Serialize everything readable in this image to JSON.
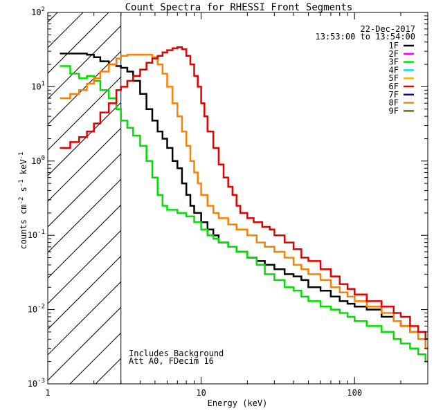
{
  "chart_data": {
    "type": "line",
    "title": "Count Spectra for RHESSI Front Segments",
    "xlabel": "Energy (keV)",
    "ylabel_base": "counts cm",
    "ylabel_exp1": "-2",
    "ylabel_mid": " s",
    "ylabel_exp2": "-1",
    "ylabel_end": " keV",
    "ylabel_exp3": "-1",
    "x_scale": "log",
    "y_scale": "log",
    "xlim": [
      1,
      300
    ],
    "ylim": [
      0.001,
      100
    ],
    "x_ticks": [
      {
        "value": 1,
        "label": "1"
      },
      {
        "value": 10,
        "label": "10"
      },
      {
        "value": 100,
        "label": "100"
      }
    ],
    "y_ticks": [
      {
        "value": 0.001,
        "base": "10",
        "exp": "-3"
      },
      {
        "value": 0.01,
        "base": "10",
        "exp": "-2"
      },
      {
        "value": 0.1,
        "base": "10",
        "exp": "-1"
      },
      {
        "value": 1,
        "base": "10",
        "exp": "0"
      },
      {
        "value": 10,
        "base": "10",
        "exp": "1"
      },
      {
        "value": 100,
        "base": "10",
        "exp": "2"
      }
    ],
    "hatched_region_max_energy": 3,
    "date_label": "22-Dec-2017",
    "time_label": "13:53:00 to 13:54:00",
    "legend": [
      {
        "name": "1F",
        "color": "#000000"
      },
      {
        "name": "2F",
        "color": "#ff00ff"
      },
      {
        "name": "3F",
        "color": "#00e000"
      },
      {
        "name": "4F",
        "color": "#00d8ff"
      },
      {
        "name": "5F",
        "color": "#ffb000"
      },
      {
        "name": "6F",
        "color": "#e00000"
      },
      {
        "name": "7F",
        "color": "#0000c0"
      },
      {
        "name": "8F",
        "color": "#ff8000"
      },
      {
        "name": "9F",
        "color": "#806000"
      }
    ],
    "annotations": [
      "Includes Background",
      "Att A0, FDecim 16"
    ],
    "series": [
      {
        "name": "1F",
        "color": "#000000",
        "points": [
          [
            1.2,
            28
          ],
          [
            1.5,
            28
          ],
          [
            1.8,
            27
          ],
          [
            2.0,
            25
          ],
          [
            2.2,
            22
          ],
          [
            2.5,
            20
          ],
          [
            2.8,
            19
          ],
          [
            3.0,
            18
          ],
          [
            3.3,
            16
          ],
          [
            3.6,
            12
          ],
          [
            4.0,
            8
          ],
          [
            4.4,
            5
          ],
          [
            4.8,
            3.5
          ],
          [
            5.2,
            2.5
          ],
          [
            5.6,
            2.0
          ],
          [
            6.0,
            1.5
          ],
          [
            6.5,
            1.0
          ],
          [
            7.0,
            0.8
          ],
          [
            7.5,
            0.5
          ],
          [
            8.0,
            0.35
          ],
          [
            8.5,
            0.25
          ],
          [
            9.0,
            0.2
          ],
          [
            10,
            0.15
          ],
          [
            11,
            0.12
          ],
          [
            12,
            0.1
          ],
          [
            13,
            0.08
          ],
          [
            15,
            0.07
          ],
          [
            17,
            0.06
          ],
          [
            20,
            0.05
          ],
          [
            23,
            0.045
          ],
          [
            26,
            0.04
          ],
          [
            30,
            0.035
          ],
          [
            35,
            0.03
          ],
          [
            40,
            0.028
          ],
          [
            45,
            0.025
          ],
          [
            50,
            0.02
          ],
          [
            60,
            0.018
          ],
          [
            70,
            0.015
          ],
          [
            80,
            0.013
          ],
          [
            90,
            0.012
          ],
          [
            100,
            0.011
          ],
          [
            120,
            0.01
          ],
          [
            150,
            0.008
          ],
          [
            180,
            0.007
          ],
          [
            200,
            0.006
          ],
          [
            230,
            0.005
          ],
          [
            260,
            0.004
          ],
          [
            290,
            0.003
          ]
        ]
      },
      {
        "name": "3F",
        "color": "#00e000",
        "points": [
          [
            1.2,
            19
          ],
          [
            1.4,
            15
          ],
          [
            1.6,
            13
          ],
          [
            1.8,
            14
          ],
          [
            2.0,
            12
          ],
          [
            2.2,
            9
          ],
          [
            2.5,
            7
          ],
          [
            2.8,
            5
          ],
          [
            3.0,
            3.5
          ],
          [
            3.3,
            2.8
          ],
          [
            3.6,
            2.2
          ],
          [
            4.0,
            1.6
          ],
          [
            4.4,
            1.0
          ],
          [
            4.8,
            0.6
          ],
          [
            5.2,
            0.35
          ],
          [
            5.6,
            0.25
          ],
          [
            6.0,
            0.22
          ],
          [
            7.0,
            0.2
          ],
          [
            8.0,
            0.18
          ],
          [
            9.0,
            0.15
          ],
          [
            10,
            0.12
          ],
          [
            11,
            0.1
          ],
          [
            12,
            0.09
          ],
          [
            13,
            0.08
          ],
          [
            15,
            0.07
          ],
          [
            17,
            0.06
          ],
          [
            20,
            0.05
          ],
          [
            23,
            0.04
          ],
          [
            26,
            0.03
          ],
          [
            30,
            0.025
          ],
          [
            35,
            0.02
          ],
          [
            40,
            0.018
          ],
          [
            45,
            0.015
          ],
          [
            50,
            0.013
          ],
          [
            60,
            0.011
          ],
          [
            70,
            0.01
          ],
          [
            80,
            0.009
          ],
          [
            90,
            0.008
          ],
          [
            100,
            0.007
          ],
          [
            120,
            0.006
          ],
          [
            150,
            0.005
          ],
          [
            180,
            0.004
          ],
          [
            200,
            0.0035
          ],
          [
            230,
            0.003
          ],
          [
            260,
            0.0025
          ],
          [
            290,
            0.002
          ]
        ]
      },
      {
        "name": "8F",
        "color": "#ff8000",
        "points": [
          [
            1.2,
            7
          ],
          [
            1.4,
            8
          ],
          [
            1.6,
            9
          ],
          [
            1.8,
            11
          ],
          [
            2.0,
            13
          ],
          [
            2.2,
            16
          ],
          [
            2.5,
            20
          ],
          [
            2.8,
            24
          ],
          [
            3.0,
            26
          ],
          [
            3.3,
            27
          ],
          [
            3.6,
            27
          ],
          [
            4.0,
            27
          ],
          [
            4.4,
            27
          ],
          [
            4.8,
            25
          ],
          [
            5.2,
            20
          ],
          [
            5.6,
            15
          ],
          [
            6.0,
            10
          ],
          [
            6.5,
            6
          ],
          [
            7.0,
            4
          ],
          [
            7.5,
            2.5
          ],
          [
            8.0,
            1.6
          ],
          [
            8.5,
            1.0
          ],
          [
            9.0,
            0.7
          ],
          [
            9.5,
            0.5
          ],
          [
            10,
            0.35
          ],
          [
            11,
            0.25
          ],
          [
            12,
            0.2
          ],
          [
            13,
            0.17
          ],
          [
            15,
            0.14
          ],
          [
            17,
            0.12
          ],
          [
            20,
            0.1
          ],
          [
            23,
            0.08
          ],
          [
            26,
            0.07
          ],
          [
            30,
            0.06
          ],
          [
            35,
            0.05
          ],
          [
            40,
            0.04
          ],
          [
            45,
            0.035
          ],
          [
            50,
            0.03
          ],
          [
            60,
            0.025
          ],
          [
            70,
            0.02
          ],
          [
            80,
            0.017
          ],
          [
            90,
            0.015
          ],
          [
            100,
            0.013
          ],
          [
            120,
            0.011
          ],
          [
            150,
            0.009
          ],
          [
            180,
            0.007
          ],
          [
            200,
            0.006
          ],
          [
            230,
            0.005
          ],
          [
            260,
            0.004
          ],
          [
            290,
            0.003
          ]
        ]
      },
      {
        "name": "6F",
        "color": "#e00000",
        "points": [
          [
            1.2,
            1.5
          ],
          [
            1.4,
            1.8
          ],
          [
            1.6,
            2.1
          ],
          [
            1.8,
            2.5
          ],
          [
            2.0,
            3.2
          ],
          [
            2.2,
            4.5
          ],
          [
            2.5,
            6
          ],
          [
            2.8,
            9
          ],
          [
            3.0,
            10
          ],
          [
            3.3,
            12
          ],
          [
            3.6,
            14
          ],
          [
            4.0,
            17
          ],
          [
            4.4,
            21
          ],
          [
            4.8,
            24
          ],
          [
            5.2,
            26
          ],
          [
            5.6,
            29
          ],
          [
            6.0,
            31
          ],
          [
            6.5,
            33
          ],
          [
            7.0,
            34
          ],
          [
            7.5,
            32
          ],
          [
            8.0,
            26
          ],
          [
            8.5,
            20
          ],
          [
            9.0,
            14
          ],
          [
            9.5,
            10
          ],
          [
            10,
            6
          ],
          [
            10.5,
            4
          ],
          [
            11,
            2.5
          ],
          [
            12,
            1.5
          ],
          [
            13,
            0.9
          ],
          [
            14,
            0.6
          ],
          [
            15,
            0.45
          ],
          [
            16,
            0.35
          ],
          [
            17,
            0.25
          ],
          [
            18,
            0.2
          ],
          [
            20,
            0.17
          ],
          [
            22,
            0.15
          ],
          [
            25,
            0.13
          ],
          [
            28,
            0.12
          ],
          [
            30,
            0.1
          ],
          [
            35,
            0.08
          ],
          [
            40,
            0.065
          ],
          [
            45,
            0.05
          ],
          [
            50,
            0.045
          ],
          [
            60,
            0.035
          ],
          [
            70,
            0.028
          ],
          [
            80,
            0.022
          ],
          [
            90,
            0.019
          ],
          [
            100,
            0.016
          ],
          [
            120,
            0.013
          ],
          [
            150,
            0.011
          ],
          [
            180,
            0.009
          ],
          [
            200,
            0.008
          ],
          [
            230,
            0.006
          ],
          [
            260,
            0.005
          ],
          [
            290,
            0.004
          ]
        ]
      }
    ]
  }
}
